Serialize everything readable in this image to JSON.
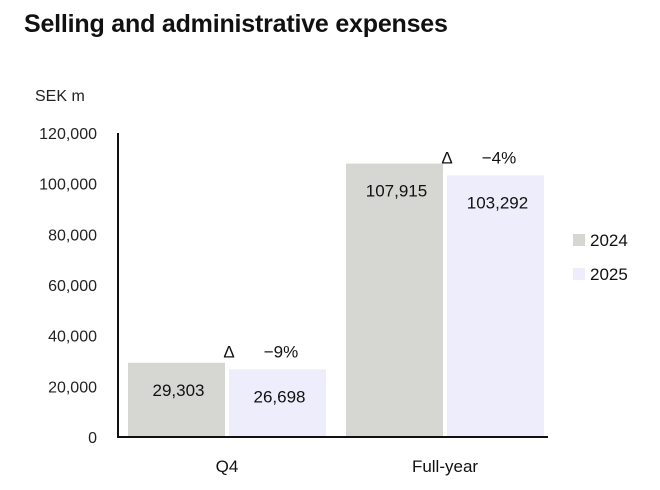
{
  "title": "Selling and administrative expenses",
  "colors": {
    "series_2024": "#d6d6d3",
    "series_2025": "#eeedfb",
    "axis": "#111111"
  },
  "chart_data": {
    "type": "bar",
    "title": "Selling and administrative expenses",
    "unit_label": "SEK m",
    "categories": [
      "Q4",
      "Full-year"
    ],
    "series": [
      {
        "name": "2024",
        "values": [
          29303,
          107915
        ],
        "labels": [
          "29,303",
          "107,915"
        ]
      },
      {
        "name": "2025",
        "values": [
          26698,
          103292
        ],
        "labels": [
          "26,698",
          "103,292"
        ]
      }
    ],
    "ylim": [
      0,
      120000
    ],
    "yticks": [
      0,
      20000,
      40000,
      60000,
      80000,
      100000,
      120000
    ],
    "ytick_labels": [
      "0",
      "20,000",
      "40,000",
      "60,000",
      "80,000",
      "100,000",
      "120,000"
    ],
    "change_labels": [
      {
        "symbol": "Δ",
        "value": "−9%"
      },
      {
        "symbol": "Δ",
        "value": "−4%"
      }
    ],
    "legend_position": "right",
    "grid": false
  }
}
